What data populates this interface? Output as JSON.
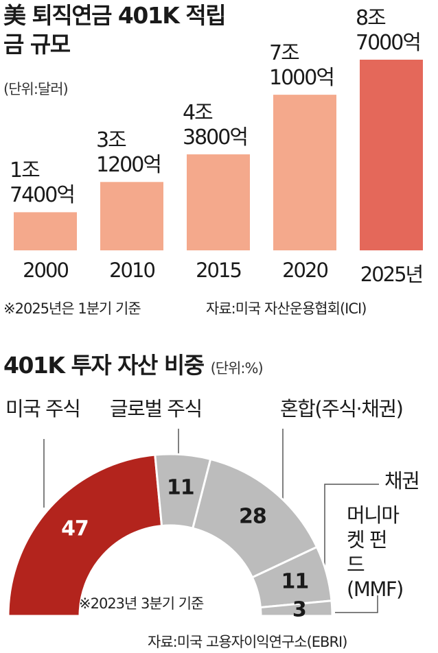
{
  "chart_data": [
    {
      "type": "bar",
      "title": "美 퇴직연금 401K 적립금 규모",
      "unit": "(단위:달러)",
      "categories": [
        "2000",
        "2010",
        "2015",
        "2020",
        "2025년"
      ],
      "values": [
        1740000000000,
        3120000000000,
        4380000000000,
        7100000000000,
        8700000000000
      ],
      "value_labels": [
        "1조 7400억",
        "3조 1200억",
        "4조 3800억",
        "7조 1000억",
        "8조 7000억"
      ],
      "colors": [
        "#f4a98c",
        "#f4a98c",
        "#f4a98c",
        "#f4a98c",
        "#e4685a"
      ],
      "note": "※2025년은 1분기 기준",
      "source": "자료:미국 자산운용협회(ICI)"
    },
    {
      "type": "semi-donut",
      "title": "401K 투자 자산 비중",
      "unit": "(단위:%)",
      "categories": [
        "미국 주식",
        "글로벌 주식",
        "혼합(주식·채권)",
        "채권",
        "머니마켓 펀드 (MMF)"
      ],
      "values": [
        47,
        11,
        28,
        11,
        3
      ],
      "colors": [
        "#b3241d",
        "#bcbcbc",
        "#bcbcbc",
        "#bcbcbc",
        "#bcbcbc"
      ],
      "note": "※2023년 3분기 기준",
      "source": "자료:미국 고용자이익연구소(EBRI)"
    }
  ]
}
